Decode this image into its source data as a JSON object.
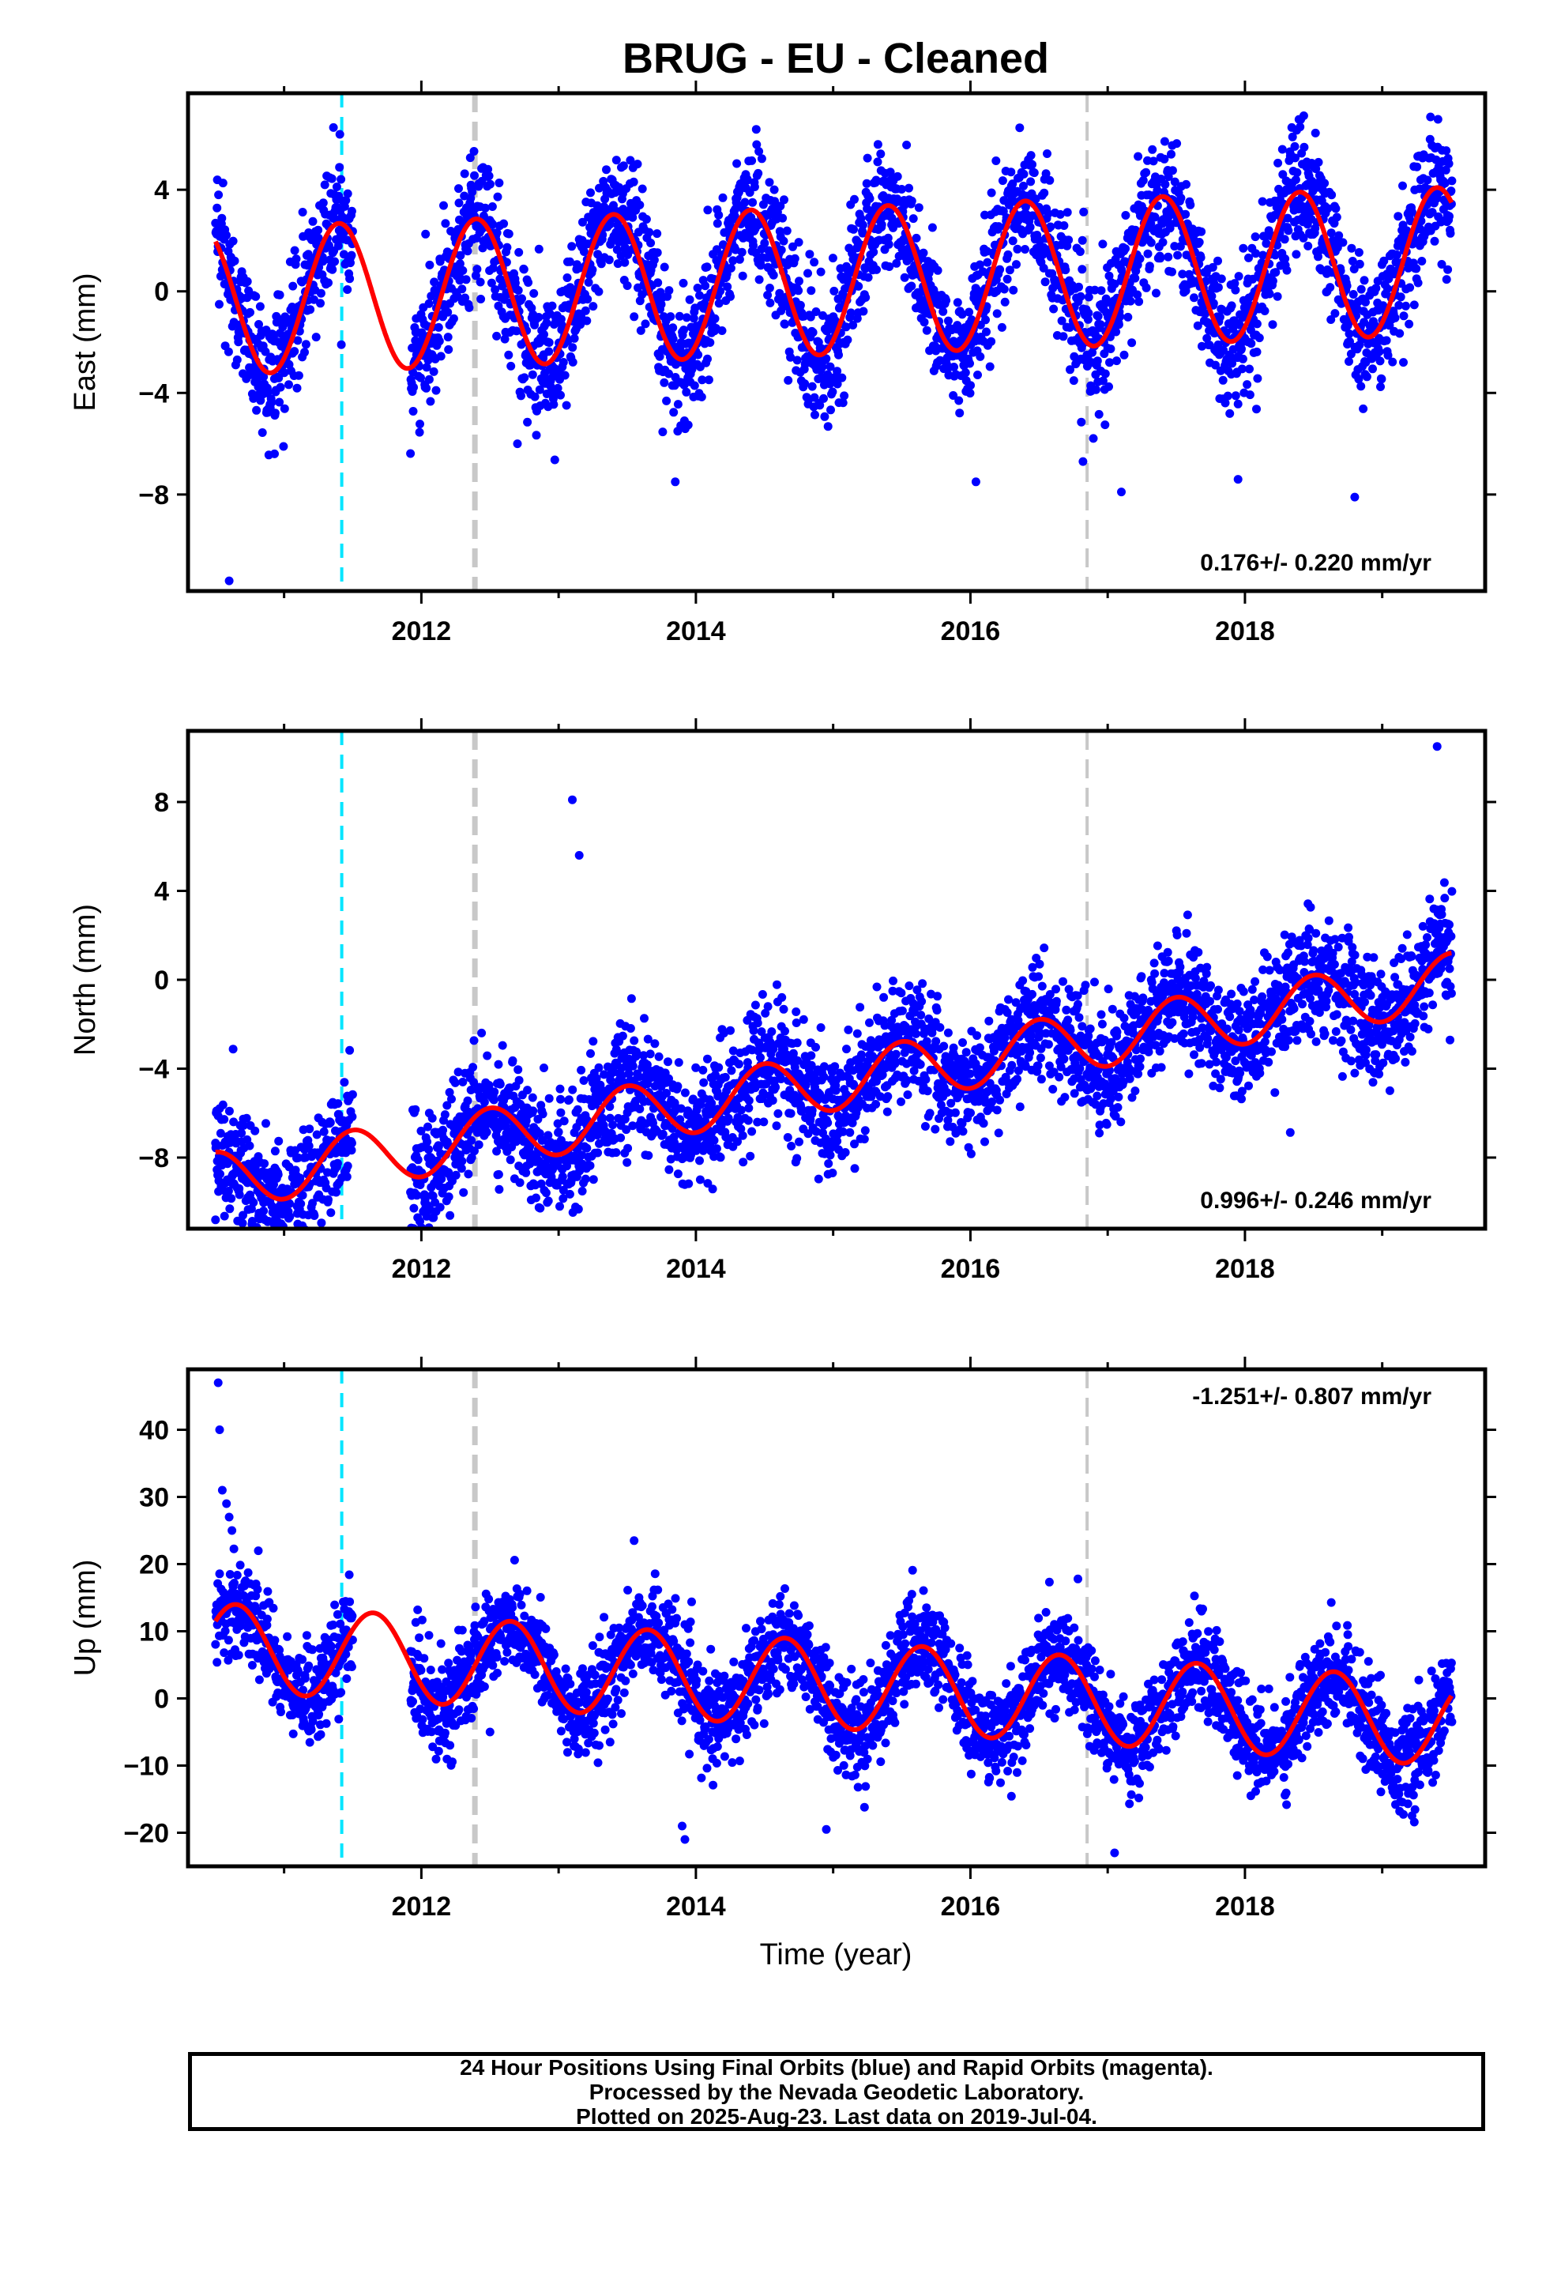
{
  "title": "BRUG  - EU - Cleaned",
  "xlabel": "Time (year)",
  "colors": {
    "points": "#0000ff",
    "model": "#ff0000",
    "cyan_line": "#00e5ff",
    "gray_line": "#c8c8c8",
    "frame": "#000000"
  },
  "x_ticks": [
    "2012",
    "2014",
    "2016",
    "2018"
  ],
  "footer": {
    "line1": "24 Hour Positions Using Final Orbits (blue) and Rapid Orbits (magenta).",
    "line2": "Processed by the Nevada Geodetic Laboratory.",
    "line3": "Plotted on 2025-Aug-23. Last data on 2019-Jul-04."
  },
  "chart_data": [
    {
      "type": "scatter",
      "panel": "east",
      "ylabel": "East (mm)",
      "xlim": [
        2010.3,
        2019.75
      ],
      "ylim": [
        -11.8,
        7.8
      ],
      "yticks": [
        4,
        0,
        -4,
        -8
      ],
      "rate_text": "0.176+/- 0.220 mm/yr",
      "rate_position": "bottom-right",
      "vlines": [
        {
          "x": 2011.42,
          "style": "cyan-dashed"
        },
        {
          "x": 2012.39,
          "style": "gray-dashed-thick"
        },
        {
          "x": 2016.85,
          "style": "gray-dashed"
        }
      ],
      "data_range": [
        2010.5,
        2019.51
      ],
      "gaps": [
        [
          2011.5,
          2011.92
        ]
      ],
      "model": {
        "offset": -0.47,
        "trend": 0.176,
        "amplitude": 2.9,
        "phase_peak": 0.4
      },
      "scatter_sd": 1.3,
      "outliers": [
        [
          2010.6,
          -11.4
        ],
        [
          2010.93,
          -6.4
        ],
        [
          2013.85,
          -7.5
        ],
        [
          2016.04,
          -7.5
        ],
        [
          2016.82,
          -6.7
        ],
        [
          2017.1,
          -7.9
        ],
        [
          2017.95,
          -7.4
        ],
        [
          2018.8,
          -8.1
        ],
        [
          2012.7,
          -6.0
        ]
      ]
    },
    {
      "type": "scatter",
      "panel": "north",
      "ylabel": "North (mm)",
      "xlim": [
        2010.3,
        2019.75
      ],
      "ylim": [
        -11.2,
        11.2
      ],
      "yticks": [
        8,
        4,
        0,
        -4,
        -8
      ],
      "rate_text": "0.996+/- 0.246 mm/yr",
      "rate_position": "bottom-right",
      "vlines": [
        {
          "x": 2011.42,
          "style": "cyan-dashed"
        },
        {
          "x": 2012.39,
          "style": "gray-dashed-thick"
        },
        {
          "x": 2016.85,
          "style": "gray-dashed"
        }
      ],
      "data_range": [
        2010.5,
        2019.51
      ],
      "gaps": [
        [
          2011.5,
          2011.92
        ]
      ],
      "model": {
        "offset": -9.56,
        "trend": 0.996,
        "amplitude": 1.3,
        "phase_peak": 0.5
      },
      "scatter_sd": 1.3,
      "outliers": [
        [
          2010.5,
          -10.8
        ],
        [
          2010.85,
          -10.4
        ],
        [
          2013.1,
          8.1
        ],
        [
          2013.15,
          5.6
        ],
        [
          2017.2,
          -5.0
        ],
        [
          2018.8,
          -4.2
        ],
        [
          2019.4,
          10.5
        ],
        [
          2016.05,
          -6.3
        ],
        [
          2012.25,
          -8.3
        ]
      ]
    },
    {
      "type": "scatter",
      "panel": "up",
      "ylabel": "Up (mm)",
      "xlim": [
        2010.3,
        2019.75
      ],
      "ylim": [
        -25,
        49
      ],
      "yticks": [
        40,
        30,
        20,
        10,
        0,
        -10,
        -20
      ],
      "rate_text": "-1.251+/- 0.807 mm/yr",
      "rate_position": "top-right",
      "vlines": [
        {
          "x": 2011.42,
          "style": "cyan-dashed"
        },
        {
          "x": 2012.39,
          "style": "gray-dashed-thick"
        },
        {
          "x": 2016.85,
          "style": "gray-dashed"
        }
      ],
      "data_range": [
        2010.5,
        2019.51
      ],
      "gaps": [
        [
          2011.5,
          2011.92
        ]
      ],
      "model": {
        "offset": 8.3,
        "trend": -1.251,
        "amplitude": 6.5,
        "phase_peak": 0.65
      },
      "scatter_sd": 3.6,
      "outliers": [
        [
          2010.52,
          47
        ],
        [
          2010.53,
          40
        ],
        [
          2010.55,
          31
        ],
        [
          2010.58,
          29
        ],
        [
          2010.6,
          27
        ],
        [
          2010.62,
          25
        ],
        [
          2013.9,
          -19
        ],
        [
          2013.92,
          -21
        ],
        [
          2014.95,
          -19.5
        ],
        [
          2017.05,
          -23
        ],
        [
          2013.55,
          23.5
        ],
        [
          2012.5,
          -5
        ]
      ]
    }
  ]
}
